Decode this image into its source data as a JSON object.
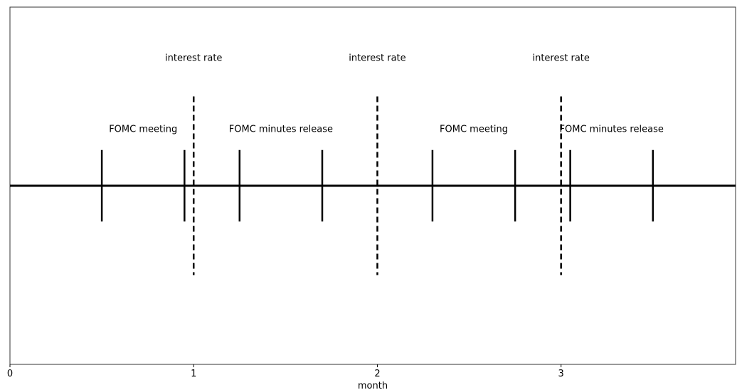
{
  "chart_data": {
    "type": "timeline",
    "title": "",
    "xlabel": "month",
    "ylabel": "",
    "xlim": [
      0,
      3.95
    ],
    "ylim": [
      -1,
      1
    ],
    "x_ticks": [
      0,
      1,
      2,
      3
    ],
    "x_tick_labels": [
      "0",
      "1",
      "2",
      "3"
    ],
    "y_ticks_shown": false,
    "grid": false,
    "baseline_y": 0,
    "periods": [
      {
        "label": "FOMC meeting",
        "start": 0.5,
        "end": 0.95
      },
      {
        "label": "FOMC minutes release",
        "start": 1.25,
        "end": 1.7
      },
      {
        "label": "FOMC meeting",
        "start": 2.3,
        "end": 2.75
      },
      {
        "label": "FOMC minutes release",
        "start": 3.05,
        "end": 3.5
      }
    ],
    "period_tick_range": [
      -0.2,
      0.2
    ],
    "period_label_y": 0.32,
    "rate_lines": [
      {
        "label": "interest rate",
        "x": 1
      },
      {
        "label": "interest rate",
        "x": 2
      },
      {
        "label": "interest rate",
        "x": 3
      }
    ],
    "rate_line_range": [
      -0.5,
      0.5
    ],
    "rate_label_y": 0.72,
    "line_color": "#000000"
  }
}
